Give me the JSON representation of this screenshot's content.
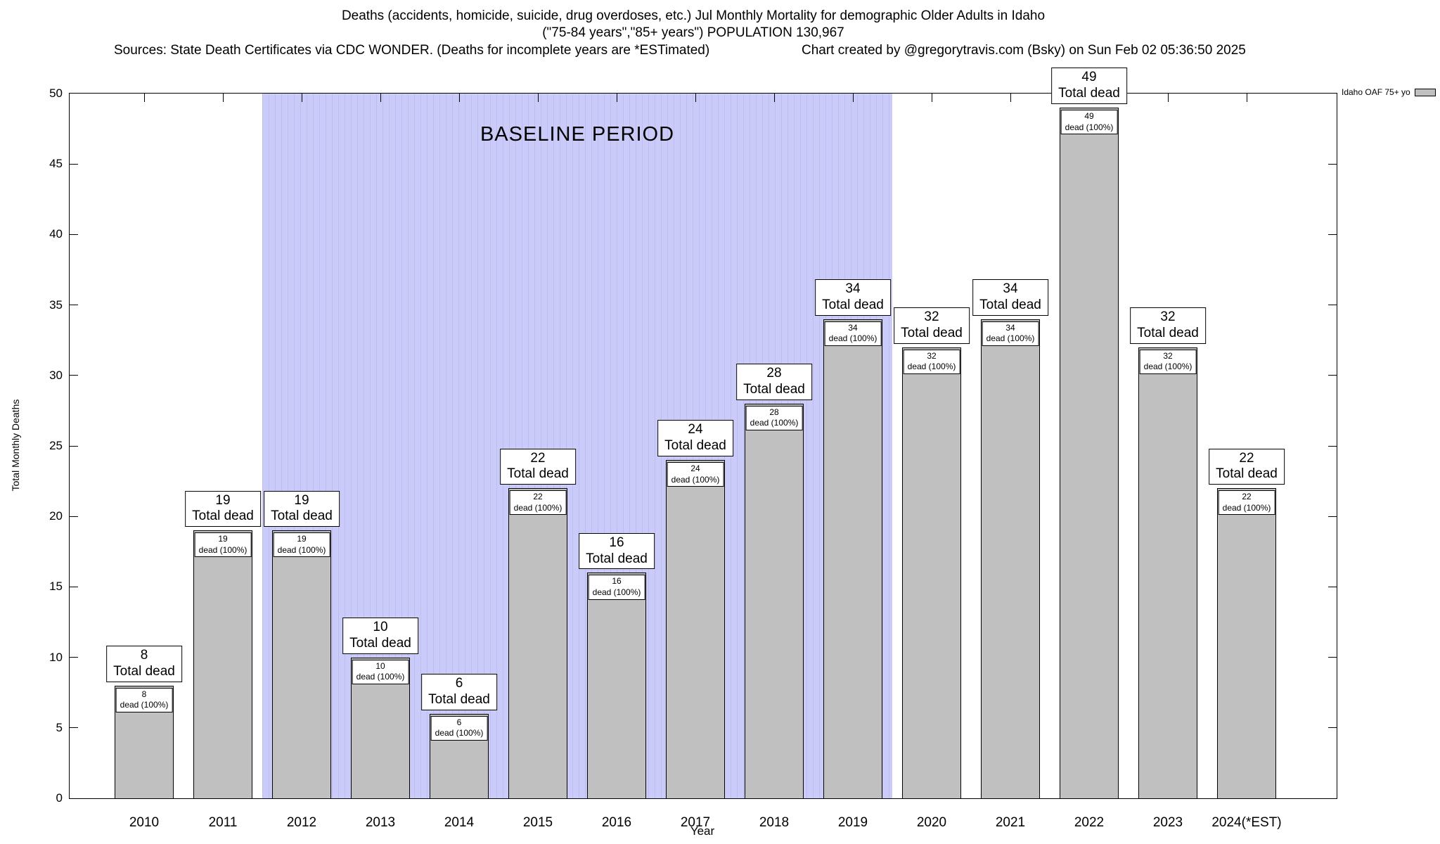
{
  "header": {
    "title_line1": "Deaths (accidents, homicide, suicide, drug overdoses, etc.) Jul Monthly Mortality for demographic Older Adults in Idaho",
    "title_line2": "(\"75-84 years\",\"85+ years\") POPULATION 130,967",
    "sources_line": "Sources: State Death Certificates via CDC WONDER. (Deaths for incomplete years are *ESTimated)",
    "credit_line": "Chart created by @gregorytravis.com (Bsky) on Sun Feb 02 05:36:50 2025"
  },
  "chart_data": {
    "type": "bar",
    "title": "Deaths (accidents, homicide, suicide, drug overdoses, etc.) Jul Monthly Mortality for demographic Older Adults in Idaho",
    "categories": [
      "2010",
      "2011",
      "2012",
      "2013",
      "2014",
      "2015",
      "2016",
      "2017",
      "2018",
      "2019",
      "2020",
      "2021",
      "2022",
      "2023",
      "2024(*EST)"
    ],
    "values": [
      8,
      19,
      19,
      10,
      6,
      22,
      16,
      24,
      28,
      34,
      32,
      34,
      49,
      32,
      22
    ],
    "bar_top_label": "Total dead",
    "bar_inner_label": "dead (100%)",
    "xlabel": "Year",
    "ylabel": "Total Monthly Deaths",
    "ylim": [
      0,
      50
    ],
    "ytick_step": 5,
    "grid": false,
    "bar_color": "#c0c0c0",
    "legend": {
      "label": "Idaho OAF 75+ yo",
      "swatch_color": "#c0c0c0",
      "position": "top-right"
    },
    "baseline_region": {
      "label": "BASELINE PERIOD",
      "from_category": "2012",
      "to_category": "2019",
      "color": "#c9c9f8"
    }
  }
}
